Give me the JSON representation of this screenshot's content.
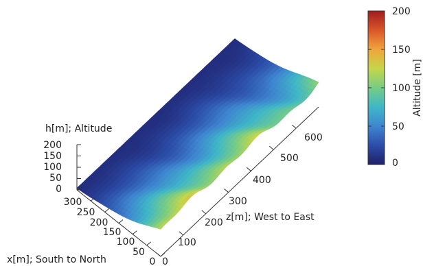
{
  "chart_data": {
    "type": "surface3d",
    "title": "",
    "xlabel": "x[m]; South to North",
    "zlabel": "z[m]; West to East",
    "ylabel": "h[m]; Altitude",
    "colorbar_label": "Altitude [m]",
    "xlim": [
      0,
      300
    ],
    "zlim": [
      0,
      700
    ],
    "hlim": [
      0,
      200
    ],
    "colorbar_range": [
      0,
      200
    ],
    "x_ticks": [
      "300",
      "250",
      "200",
      "150",
      "100",
      "50",
      "0"
    ],
    "z_ticks": [
      "0",
      "100",
      "200",
      "300",
      "400",
      "500",
      "600"
    ],
    "h_ticks": [
      "200",
      "150",
      "100",
      "50",
      "0"
    ],
    "colorbar_ticks": [
      "200",
      "150",
      "100",
      "50",
      "0"
    ],
    "colormap": [
      "#1f1f6b",
      "#2c4da8",
      "#3f86d0",
      "#3fb7c7",
      "#76cc86",
      "#c6d64a",
      "#f0a53c",
      "#d9562a",
      "#a11d1d"
    ],
    "description_of_surface": "hillslope: low (~10 m) along the north edge (x≈300), rising to ~100–120 m toward the south edge (x≈0)",
    "grid": false
  }
}
